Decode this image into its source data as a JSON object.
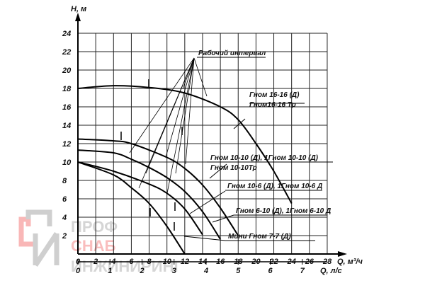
{
  "chart_data": {
    "type": "line",
    "title": "",
    "xlabel": "Q, м³/ч",
    "x2label": "Q, л/с",
    "ylabel": "H, м",
    "xlim": [
      0,
      28
    ],
    "ylim": [
      0,
      24
    ],
    "grid": true,
    "xticks": [
      "0",
      "2",
      "4",
      "6",
      "8",
      "10",
      "12",
      "14",
      "16",
      "18",
      "20",
      "22",
      "24",
      "26",
      "28"
    ],
    "x2ticks": [
      "0",
      "1",
      "2",
      "3",
      "4",
      "5",
      "6",
      "7"
    ],
    "yticks": [
      "2",
      "4",
      "6",
      "8",
      "10",
      "12",
      "14",
      "16",
      "18",
      "20",
      "22",
      "24"
    ],
    "series": [
      {
        "name": "Гном 16-16 (Д)",
        "name2": "Гном16-16 Тр",
        "x": [
          0,
          4,
          8,
          12,
          16,
          18,
          20,
          22,
          24
        ],
        "y": [
          18,
          18.3,
          18.1,
          17.5,
          16,
          14.6,
          12,
          9,
          5.5
        ]
      },
      {
        "name": "Гном 10-10 (Д), 1Гном 10-10 (Д)",
        "name2": "Гном 10-10Тр",
        "x": [
          0,
          4,
          6,
          10,
          12,
          14,
          16,
          18
        ],
        "y": [
          12.5,
          12.3,
          12,
          10.5,
          9.3,
          7.5,
          5,
          2
        ]
      },
      {
        "name": "Гном 10-6 (Д), 1Гном 10-6 Д",
        "x": [
          0,
          4,
          6,
          8,
          10,
          12,
          14,
          16
        ],
        "y": [
          11.3,
          11,
          10.3,
          9.4,
          8.3,
          6.8,
          4.6,
          1.6
        ]
      },
      {
        "name": "Гном 6-10 (Д), 1Гном 6-10 Д",
        "x": [
          0,
          4,
          8,
          10,
          12,
          14
        ],
        "y": [
          10,
          9,
          7.6,
          6.6,
          4.9,
          2.1
        ]
      },
      {
        "name": "Мини Гном 7-7 (Д)",
        "x": [
          0,
          4,
          6,
          8,
          10,
          12
        ],
        "y": [
          10,
          8.6,
          7.2,
          5.5,
          3,
          0
        ]
      }
    ],
    "annotation": "Рабочий интервал"
  },
  "watermark": {
    "line1": "ПРОФ",
    "line2": "СНАБ",
    "line3": "ИНЖИНИРИНГ"
  }
}
